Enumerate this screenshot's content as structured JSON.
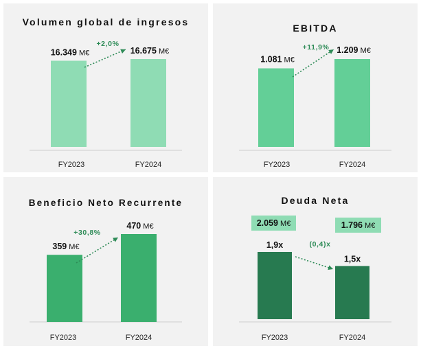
{
  "colors": {
    "light": "#8fdcb4",
    "medium": "#63cf97",
    "dark": "#3aaf6e",
    "darker": "#277a50",
    "delta": "#2e8b57",
    "boxes": "#8fdcb4"
  },
  "panels": [
    {
      "title": "Volumen global de ingresos"
    },
    {
      "title": "EBITDA"
    },
    {
      "title": "Beneficio Neto Recurrente"
    },
    {
      "title": "Deuda Neta"
    }
  ],
  "chart_data": [
    {
      "type": "bar",
      "title": "Volumen global de ingresos",
      "categories": [
        "FY2023",
        "FY2024"
      ],
      "values": [
        16349,
        16675
      ],
      "value_labels": [
        "16.349",
        "16.675"
      ],
      "unit": "M€",
      "change_label": "+2,0%",
      "ylim": [
        0,
        16675
      ]
    },
    {
      "type": "bar",
      "title": "EBITDA",
      "categories": [
        "FY2023",
        "FY2024"
      ],
      "values": [
        1081,
        1209
      ],
      "value_labels": [
        "1.081",
        "1.209"
      ],
      "unit": "M€",
      "change_label": "+11,9%",
      "ylim": [
        0,
        1209
      ]
    },
    {
      "type": "bar",
      "title": "Beneficio Neto Recurrente",
      "categories": [
        "FY2023",
        "FY2024"
      ],
      "values": [
        359,
        470
      ],
      "value_labels": [
        "359",
        "470"
      ],
      "unit": "M€",
      "change_label": "+30,8%",
      "ylim": [
        0,
        470
      ]
    },
    {
      "type": "bar",
      "title": "Deuda Neta",
      "categories": [
        "FY2023",
        "FY2024"
      ],
      "values": [
        1.9,
        1.5
      ],
      "value_labels": [
        "1,9x",
        "1,5x"
      ],
      "change_label": "(0,4)x",
      "debt_labels": [
        "2.059",
        "1.796"
      ],
      "unit": "M€",
      "ylim": [
        0,
        1.9
      ]
    }
  ]
}
